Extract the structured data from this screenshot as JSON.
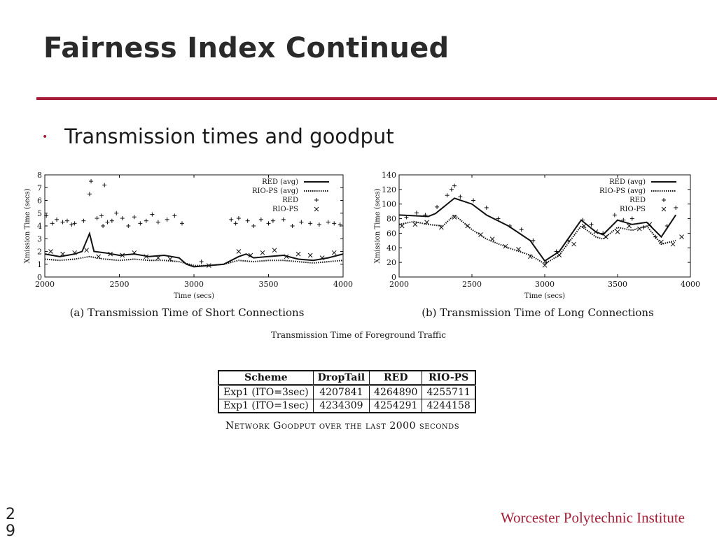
{
  "slide": {
    "title": "Fairness Index Continued",
    "bullet": "Transmission times and goodput",
    "figure_caption": "Transmission Time of Foreground Traffic",
    "table_caption": "Network Goodput over the last 2000 seconds",
    "footer": "Worcester Polytechnic Institute",
    "page_number": "29"
  },
  "colors": {
    "accent": "#a51e36"
  },
  "table": {
    "headers": [
      "Scheme",
      "DropTail",
      "RED",
      "RIO-PS"
    ],
    "rows": [
      [
        "Exp1 (ITO=3sec)",
        "4207841",
        "4264890",
        "4255711"
      ],
      [
        "Exp1 (ITO=1sec)",
        "4234309",
        "4254291",
        "4244158"
      ]
    ]
  },
  "chart_data": [
    {
      "type": "scatter",
      "title": "(a) Transmission Time of Short Connections",
      "xlabel": "Time (secs)",
      "ylabel": "Xmission Time (secs)",
      "xlim": [
        2000,
        4000
      ],
      "ylim": [
        0,
        8
      ],
      "xticks": [
        2000,
        2500,
        3000,
        3500,
        4000
      ],
      "yticks": [
        0,
        1,
        2,
        3,
        4,
        5,
        6,
        7,
        8
      ],
      "legend_position": "top-right",
      "series": [
        {
          "name": "RED (avg)",
          "style": "solid-line",
          "x": [
            2000,
            2100,
            2200,
            2250,
            2300,
            2330,
            2400,
            2500,
            2600,
            2700,
            2800,
            2900,
            2950,
            3000,
            3100,
            3200,
            3300,
            3350,
            3400,
            3500,
            3600,
            3700,
            3800,
            3900,
            4000
          ],
          "y": [
            1.8,
            1.6,
            1.8,
            2.0,
            3.4,
            2.0,
            1.9,
            1.7,
            1.8,
            1.6,
            1.7,
            1.5,
            1.0,
            0.8,
            0.9,
            1.0,
            1.6,
            1.8,
            1.5,
            1.6,
            1.7,
            1.4,
            1.3,
            1.5,
            1.8
          ]
        },
        {
          "name": "RIO-PS (avg)",
          "style": "dotted-line",
          "x": [
            2000,
            2100,
            2200,
            2300,
            2400,
            2500,
            2600,
            2700,
            2800,
            2900,
            3000,
            3100,
            3200,
            3300,
            3400,
            3500,
            3600,
            3700,
            3800,
            3900,
            4000
          ],
          "y": [
            1.4,
            1.3,
            1.4,
            1.6,
            1.4,
            1.3,
            1.4,
            1.3,
            1.3,
            1.2,
            0.9,
            0.9,
            1.0,
            1.3,
            1.2,
            1.3,
            1.3,
            1.2,
            1.1,
            1.2,
            1.3
          ]
        },
        {
          "name": "RED",
          "style": "plus-marker",
          "x": [
            2010,
            2050,
            2080,
            2120,
            2150,
            2180,
            2200,
            2260,
            2300,
            2310,
            2350,
            2380,
            2390,
            2400,
            2420,
            2450,
            2480,
            2520,
            2560,
            2600,
            2640,
            2680,
            2720,
            2760,
            2820,
            2870,
            2920,
            3050,
            3250,
            3280,
            3300,
            3360,
            3400,
            3450,
            3500,
            3530,
            3600,
            3660,
            3720,
            3780,
            3840,
            3900,
            3940,
            3980
          ],
          "y": [
            4.8,
            4.2,
            4.5,
            4.3,
            4.4,
            4.1,
            4.2,
            4.4,
            6.5,
            7.5,
            4.6,
            4.8,
            4.0,
            7.2,
            4.3,
            4.4,
            5.0,
            4.6,
            4.0,
            4.7,
            4.2,
            4.4,
            4.9,
            4.3,
            4.5,
            4.8,
            4.2,
            1.2,
            4.5,
            4.2,
            4.6,
            4.4,
            4.0,
            4.5,
            4.2,
            4.4,
            4.5,
            4.0,
            4.3,
            4.2,
            4.1,
            4.3,
            4.2,
            4.1
          ]
        },
        {
          "name": "RIO-PS",
          "style": "x-marker",
          "x": [
            2040,
            2120,
            2200,
            2280,
            2360,
            2440,
            2520,
            2600,
            2680,
            2760,
            2840,
            3100,
            3300,
            3380,
            3460,
            3540,
            3620,
            3700,
            3780,
            3860,
            3940
          ],
          "y": [
            2.0,
            1.8,
            1.9,
            2.1,
            1.6,
            1.8,
            1.7,
            1.9,
            1.6,
            1.5,
            1.4,
            0.9,
            2.0,
            1.7,
            1.9,
            2.1,
            1.6,
            1.8,
            1.7,
            1.5,
            1.9
          ]
        }
      ]
    },
    {
      "type": "scatter",
      "title": "(b) Transmission Time of Long Connections",
      "xlabel": "Time (secs)",
      "ylabel": "Xmission Time (secs)",
      "xlim": [
        2000,
        4000
      ],
      "ylim": [
        0,
        140
      ],
      "xticks": [
        2000,
        2500,
        3000,
        3500,
        4000
      ],
      "yticks": [
        0,
        20,
        40,
        60,
        80,
        100,
        120,
        140
      ],
      "legend_position": "top-right",
      "series": [
        {
          "name": "RED (avg)",
          "style": "solid-line",
          "x": [
            2000,
            2100,
            2200,
            2250,
            2380,
            2500,
            2600,
            2750,
            2900,
            3000,
            3100,
            3250,
            3350,
            3400,
            3500,
            3600,
            3700,
            3800,
            3900
          ],
          "y": [
            85,
            84,
            83,
            87,
            108,
            100,
            85,
            70,
            50,
            22,
            35,
            78,
            62,
            58,
            78,
            72,
            75,
            55,
            85
          ]
        },
        {
          "name": "RIO-PS (avg)",
          "style": "dotted-line",
          "x": [
            2000,
            2100,
            2200,
            2300,
            2380,
            2500,
            2600,
            2750,
            2900,
            3000,
            3100,
            3250,
            3350,
            3400,
            3500,
            3600,
            3700,
            3800,
            3900
          ],
          "y": [
            72,
            76,
            72,
            70,
            85,
            65,
            52,
            40,
            30,
            18,
            30,
            70,
            55,
            52,
            68,
            64,
            70,
            45,
            50
          ]
        },
        {
          "name": "RED",
          "style": "plus-marker",
          "x": [
            2050,
            2120,
            2180,
            2260,
            2330,
            2360,
            2380,
            2420,
            2510,
            2600,
            2680,
            2760,
            2840,
            2920,
            3010,
            3080,
            3160,
            3260,
            3320,
            3400,
            3480,
            3540,
            3600,
            3680,
            3760,
            3840,
            3900
          ],
          "y": [
            82,
            88,
            85,
            96,
            112,
            120,
            125,
            110,
            105,
            95,
            80,
            70,
            65,
            50,
            20,
            35,
            50,
            78,
            72,
            60,
            85,
            78,
            80,
            68,
            55,
            70,
            95
          ]
        },
        {
          "name": "RIO-PS",
          "style": "x-marker",
          "x": [
            2020,
            2110,
            2190,
            2290,
            2380,
            2470,
            2560,
            2640,
            2730,
            2820,
            2900,
            3000,
            3100,
            3200,
            3270,
            3350,
            3420,
            3500,
            3580,
            3650,
            3720,
            3800,
            3880,
            3940
          ],
          "y": [
            70,
            72,
            75,
            68,
            82,
            70,
            58,
            52,
            42,
            38,
            28,
            16,
            30,
            45,
            70,
            62,
            55,
            62,
            70,
            66,
            72,
            48,
            45,
            55
          ]
        }
      ]
    }
  ]
}
